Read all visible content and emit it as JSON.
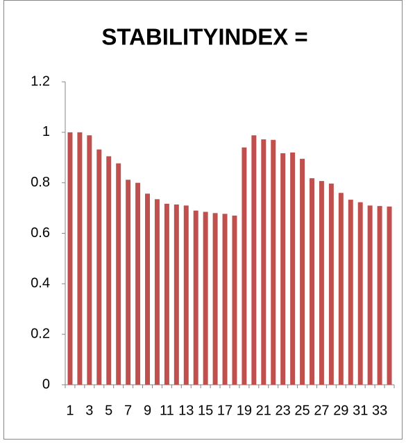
{
  "chart_data": {
    "type": "bar",
    "title": "STABILITYINDEX =",
    "categories": [
      "1",
      null,
      "3",
      null,
      "5",
      null,
      "7",
      null,
      "9",
      null,
      "11",
      null,
      "13",
      null,
      "15",
      null,
      "17",
      null,
      "19",
      null,
      "21",
      null,
      "23",
      null,
      "25",
      null,
      "27",
      null,
      "29",
      null,
      "31",
      null,
      "33",
      null
    ],
    "values": [
      1.0,
      1.0,
      0.988,
      0.932,
      0.905,
      0.877,
      0.812,
      0.8,
      0.757,
      0.735,
      0.717,
      0.714,
      0.71,
      0.69,
      0.685,
      0.68,
      0.677,
      0.67,
      0.94,
      0.988,
      0.972,
      0.97,
      0.917,
      0.92,
      0.895,
      0.818,
      0.807,
      0.797,
      0.76,
      0.733,
      0.723,
      0.71,
      0.708,
      0.706
    ],
    "color": "#c0504d",
    "ylim": [
      0,
      1.2
    ],
    "yticks": [
      0,
      0.2,
      0.4,
      0.6,
      0.8,
      1,
      1.2
    ]
  }
}
